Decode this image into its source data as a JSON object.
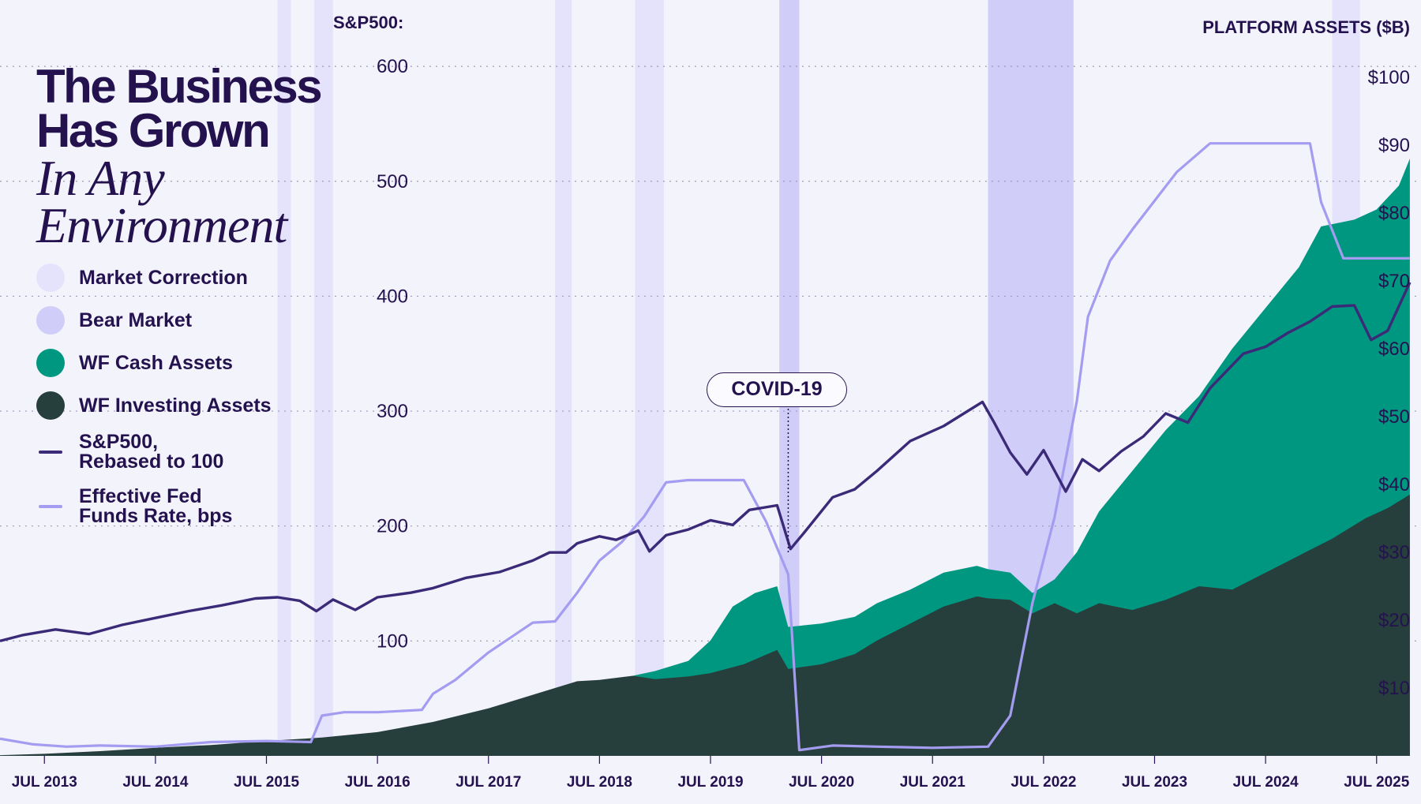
{
  "title": {
    "line1": "The Business",
    "line2": "Has Grown",
    "italic1": "In Any",
    "italic2": "Environment"
  },
  "legend": [
    {
      "label": "Market Correction",
      "color": "#e4e3fb",
      "kind": "circle"
    },
    {
      "label": "Bear Market",
      "color": "#d0cdf8",
      "kind": "circle"
    },
    {
      "label": "WF Cash Assets",
      "color": "#009780",
      "kind": "circle"
    },
    {
      "label": "WF Investing Assets",
      "color": "#273f3c",
      "kind": "circle"
    },
    {
      "label": "S&P500, Rebased to 100",
      "line1": "S&P500,",
      "line2": "Rebased to 100",
      "color": "#3b2a78",
      "kind": "line"
    },
    {
      "label": "Effective Fed Funds Rate, bps",
      "line1": "Effective Fed",
      "line2": "Funds Rate, bps",
      "color": "#a49cf0",
      "kind": "line"
    }
  ],
  "annotation": {
    "label": "COVID-19",
    "date": 2020.2
  },
  "chart_data": {
    "type": "area",
    "left_axis": {
      "label": "S&P500:",
      "ticks": [
        100,
        200,
        300,
        400,
        500,
        600
      ],
      "range": [
        0,
        620
      ]
    },
    "right_axis": {
      "label": "PLATFORM ASSETS ($B)",
      "ticks": [
        "$10",
        "$20",
        "$30",
        "$40",
        "$50",
        "$60",
        "$70",
        "$80",
        "$90",
        "$100"
      ],
      "tick_values": [
        10,
        20,
        30,
        40,
        50,
        60,
        70,
        80,
        90,
        100
      ],
      "range": [
        0,
        103
      ]
    },
    "x_axis": {
      "ticks": [
        "JUL 2013",
        "JUL 2014",
        "JUL 2015",
        "JUL 2016",
        "JUL 2017",
        "JUL 2018",
        "JUL 2019",
        "JUL 2020",
        "JUL 2021",
        "JUL 2022",
        "JUL 2023",
        "JUL 2024",
        "JUL 2025"
      ],
      "tick_values": [
        2013.5,
        2014.5,
        2015.5,
        2016.5,
        2017.5,
        2018.5,
        2019.5,
        2020.5,
        2021.5,
        2022.5,
        2023.5,
        2024.5,
        2025.5
      ],
      "range": [
        2013.1,
        2025.9
      ]
    },
    "grid": "dotted horizontal",
    "market_corrections": [
      [
        2015.6,
        2015.72
      ],
      [
        2015.93,
        2016.1
      ],
      [
        2018.1,
        2018.25
      ],
      [
        2018.82,
        2019.08
      ],
      [
        2025.1,
        2025.35
      ]
    ],
    "bear_markets": [
      [
        2020.12,
        2020.3
      ],
      [
        2022.0,
        2022.77
      ]
    ],
    "series": [
      {
        "name": "WF Investing Assets",
        "axis": "right",
        "color": "#273f3c",
        "points": [
          [
            2013.1,
            0.1
          ],
          [
            2013.5,
            0.3
          ],
          [
            2014.0,
            0.7
          ],
          [
            2014.5,
            1.2
          ],
          [
            2015.0,
            1.6
          ],
          [
            2015.5,
            2.2
          ],
          [
            2016.0,
            2.7
          ],
          [
            2016.5,
            3.5
          ],
          [
            2017.0,
            5.0
          ],
          [
            2017.5,
            7.0
          ],
          [
            2018.0,
            9.5
          ],
          [
            2018.3,
            11.0
          ],
          [
            2018.5,
            11.2
          ],
          [
            2018.8,
            11.8
          ],
          [
            2019.0,
            11.3
          ],
          [
            2019.3,
            11.7
          ],
          [
            2019.5,
            12.2
          ],
          [
            2019.8,
            13.5
          ],
          [
            2020.1,
            15.6
          ],
          [
            2020.2,
            12.8
          ],
          [
            2020.5,
            13.5
          ],
          [
            2020.8,
            15.0
          ],
          [
            2021.0,
            17.0
          ],
          [
            2021.3,
            19.5
          ],
          [
            2021.6,
            22.0
          ],
          [
            2021.9,
            23.5
          ],
          [
            2022.0,
            23.2
          ],
          [
            2022.2,
            23.0
          ],
          [
            2022.4,
            21.0
          ],
          [
            2022.6,
            22.5
          ],
          [
            2022.8,
            21.0
          ],
          [
            2023.0,
            22.5
          ],
          [
            2023.3,
            21.5
          ],
          [
            2023.6,
            23.0
          ],
          [
            2023.9,
            25.0
          ],
          [
            2024.2,
            24.5
          ],
          [
            2024.5,
            27.0
          ],
          [
            2024.8,
            29.5
          ],
          [
            2025.1,
            32.0
          ],
          [
            2025.4,
            35.0
          ],
          [
            2025.6,
            36.5
          ],
          [
            2025.8,
            38.5
          ]
        ]
      },
      {
        "name": "WF Cash Assets",
        "axis": "right",
        "color": "#009780",
        "points": [
          [
            2018.8,
            11.8
          ],
          [
            2019.0,
            12.5
          ],
          [
            2019.3,
            14.0
          ],
          [
            2019.5,
            17.0
          ],
          [
            2019.7,
            22.0
          ],
          [
            2019.9,
            24.0
          ],
          [
            2020.1,
            25.0
          ],
          [
            2020.2,
            19.0
          ],
          [
            2020.5,
            19.5
          ],
          [
            2020.8,
            20.5
          ],
          [
            2021.0,
            22.5
          ],
          [
            2021.3,
            24.5
          ],
          [
            2021.6,
            27.0
          ],
          [
            2021.9,
            28.0
          ],
          [
            2022.0,
            27.5
          ],
          [
            2022.2,
            27.0
          ],
          [
            2022.4,
            24.0
          ],
          [
            2022.6,
            26.0
          ],
          [
            2022.8,
            30.0
          ],
          [
            2023.0,
            36.0
          ],
          [
            2023.3,
            42.0
          ],
          [
            2023.6,
            48.0
          ],
          [
            2023.9,
            53.0
          ],
          [
            2024.2,
            60.0
          ],
          [
            2024.5,
            66.0
          ],
          [
            2024.8,
            72.0
          ],
          [
            2025.0,
            78.0
          ],
          [
            2025.3,
            79.0
          ],
          [
            2025.5,
            80.5
          ],
          [
            2025.7,
            84.0
          ],
          [
            2025.8,
            88.0
          ]
        ]
      },
      {
        "name": "S&P500, Rebased to 100",
        "axis": "left",
        "color": "#3b2a78",
        "points": [
          [
            2013.1,
            100
          ],
          [
            2013.3,
            105
          ],
          [
            2013.6,
            110
          ],
          [
            2013.9,
            106
          ],
          [
            2014.2,
            114
          ],
          [
            2014.5,
            120
          ],
          [
            2014.8,
            126
          ],
          [
            2015.1,
            131
          ],
          [
            2015.4,
            137
          ],
          [
            2015.6,
            138
          ],
          [
            2015.8,
            135
          ],
          [
            2015.95,
            126
          ],
          [
            2016.1,
            136
          ],
          [
            2016.3,
            127
          ],
          [
            2016.5,
            138
          ],
          [
            2016.8,
            142
          ],
          [
            2017.0,
            146
          ],
          [
            2017.3,
            155
          ],
          [
            2017.6,
            160
          ],
          [
            2017.9,
            170
          ],
          [
            2018.05,
            177
          ],
          [
            2018.2,
            177
          ],
          [
            2018.3,
            185
          ],
          [
            2018.5,
            191
          ],
          [
            2018.65,
            188
          ],
          [
            2018.85,
            196
          ],
          [
            2018.95,
            178
          ],
          [
            2019.1,
            192
          ],
          [
            2019.3,
            197
          ],
          [
            2019.5,
            205
          ],
          [
            2019.7,
            201
          ],
          [
            2019.85,
            214
          ],
          [
            2020.1,
            218
          ],
          [
            2020.22,
            180
          ],
          [
            2020.35,
            195
          ],
          [
            2020.6,
            225
          ],
          [
            2020.8,
            232
          ],
          [
            2021.0,
            248
          ],
          [
            2021.3,
            274
          ],
          [
            2021.6,
            287
          ],
          [
            2021.8,
            299
          ],
          [
            2021.95,
            308
          ],
          [
            2022.05,
            291
          ],
          [
            2022.2,
            264
          ],
          [
            2022.35,
            245
          ],
          [
            2022.5,
            266
          ],
          [
            2022.7,
            230
          ],
          [
            2022.85,
            258
          ],
          [
            2023.0,
            248
          ],
          [
            2023.2,
            265
          ],
          [
            2023.4,
            278
          ],
          [
            2023.6,
            298
          ],
          [
            2023.8,
            290
          ],
          [
            2024.0,
            320
          ],
          [
            2024.3,
            350
          ],
          [
            2024.5,
            356
          ],
          [
            2024.7,
            368
          ],
          [
            2024.9,
            378
          ],
          [
            2025.1,
            391
          ],
          [
            2025.3,
            392
          ],
          [
            2025.45,
            362
          ],
          [
            2025.6,
            370
          ],
          [
            2025.8,
            412
          ]
        ]
      },
      {
        "name": "Effective Fed Funds Rate, bps",
        "axis": "left",
        "color": "#a49cf0",
        "points": [
          [
            2013.1,
            15
          ],
          [
            2013.4,
            10
          ],
          [
            2013.7,
            8
          ],
          [
            2014.0,
            9
          ],
          [
            2014.5,
            8
          ],
          [
            2015.0,
            12
          ],
          [
            2015.5,
            13
          ],
          [
            2015.9,
            12
          ],
          [
            2016.0,
            35
          ],
          [
            2016.2,
            38
          ],
          [
            2016.5,
            38
          ],
          [
            2016.9,
            40
          ],
          [
            2017.0,
            54
          ],
          [
            2017.2,
            66
          ],
          [
            2017.5,
            90
          ],
          [
            2017.9,
            116
          ],
          [
            2018.1,
            117
          ],
          [
            2018.3,
            142
          ],
          [
            2018.5,
            170
          ],
          [
            2018.7,
            186
          ],
          [
            2018.9,
            208
          ],
          [
            2019.1,
            238
          ],
          [
            2019.3,
            240
          ],
          [
            2019.5,
            240
          ],
          [
            2019.8,
            240
          ],
          [
            2020.0,
            204
          ],
          [
            2020.2,
            158
          ],
          [
            2020.3,
            5
          ],
          [
            2020.6,
            9
          ],
          [
            2021.0,
            8
          ],
          [
            2021.5,
            7
          ],
          [
            2022.0,
            8
          ],
          [
            2022.2,
            35
          ],
          [
            2022.4,
            133
          ],
          [
            2022.6,
            208
          ],
          [
            2022.8,
            309
          ],
          [
            2022.9,
            382
          ],
          [
            2023.1,
            431
          ],
          [
            2023.3,
            458
          ],
          [
            2023.5,
            483
          ],
          [
            2023.7,
            508
          ],
          [
            2024.0,
            533
          ],
          [
            2024.5,
            533
          ],
          [
            2024.9,
            533
          ],
          [
            2025.0,
            482
          ],
          [
            2025.2,
            433
          ],
          [
            2025.4,
            433
          ],
          [
            2025.6,
            433
          ],
          [
            2025.8,
            433
          ]
        ]
      }
    ]
  }
}
